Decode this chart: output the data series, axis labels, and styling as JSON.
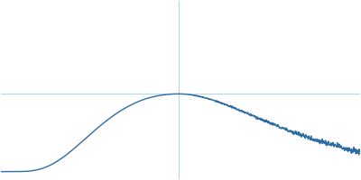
{
  "background_color": "#ffffff",
  "line_color": "#2e6da4",
  "line_width": 1.0,
  "crosshair_color": "#add8e6",
  "crosshair_lw": 0.8,
  "figsize": [
    4.0,
    2.0
  ],
  "dpi": 100
}
